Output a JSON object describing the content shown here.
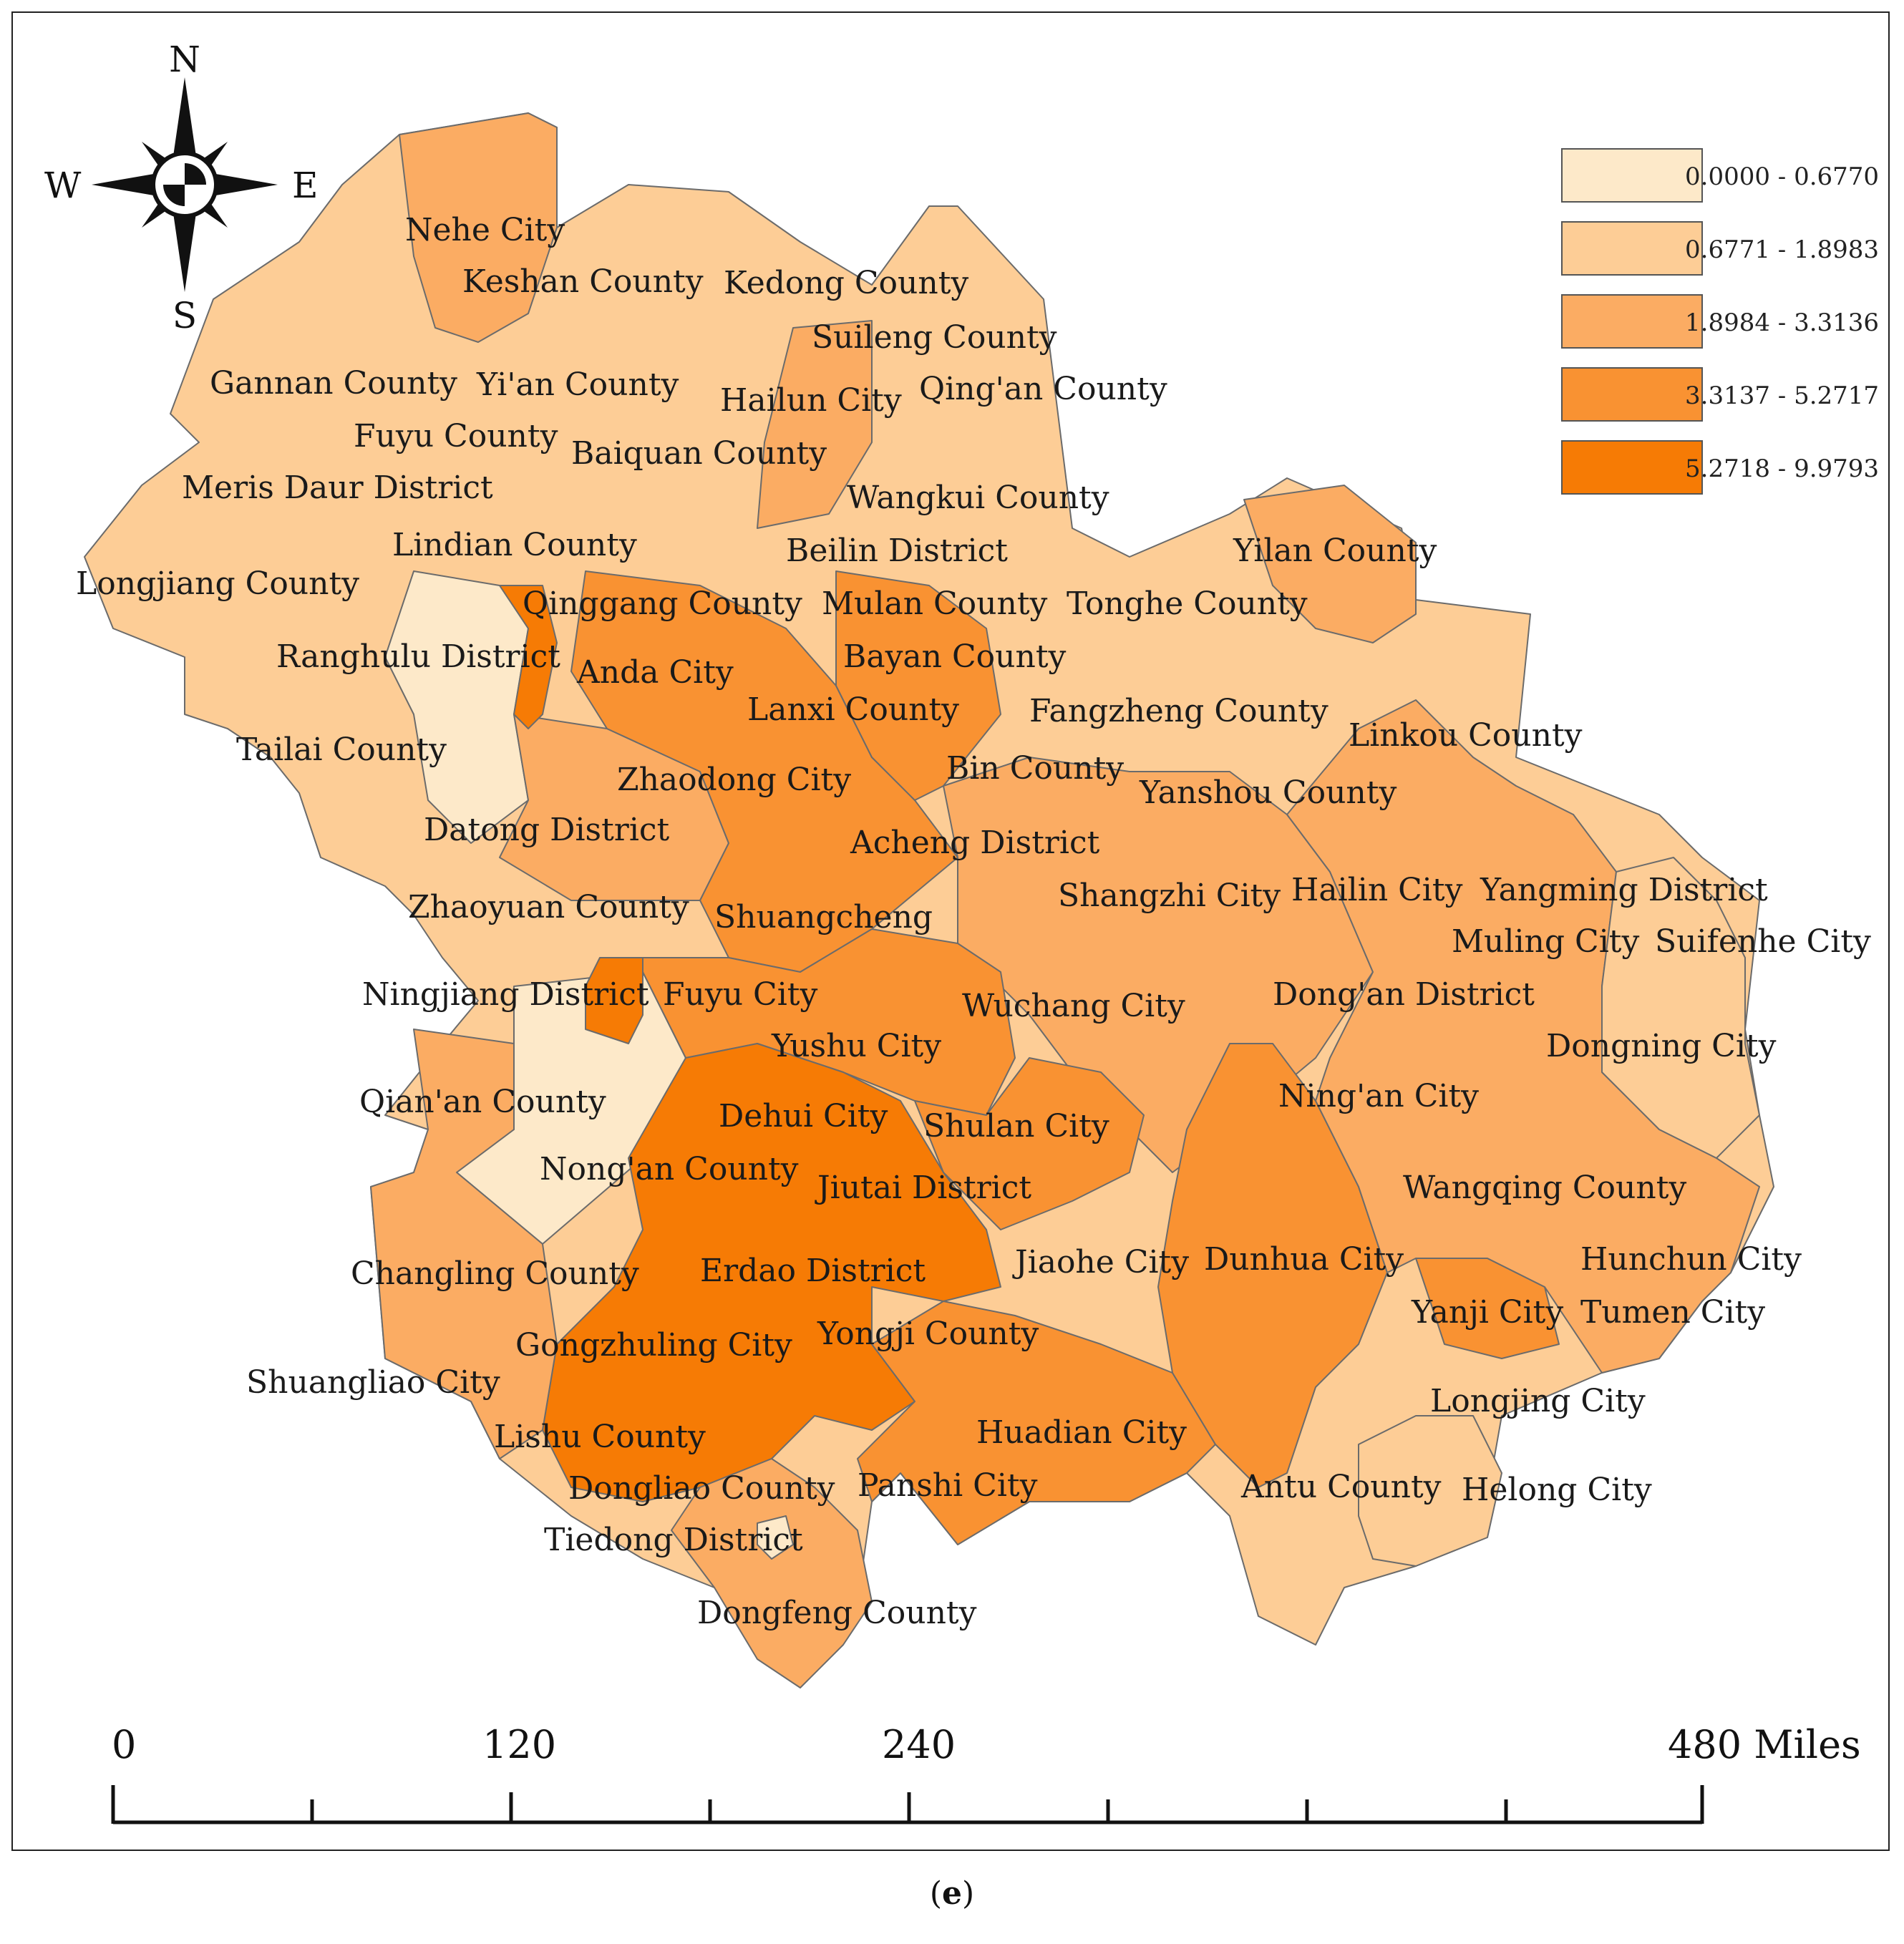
{
  "compass": {
    "north": "N",
    "south": "S",
    "east": "E",
    "west": "W"
  },
  "legend": {
    "classes": [
      {
        "label": "0.0000 - 0.6770",
        "color": "#fde9c9"
      },
      {
        "label": "0.6771 - 1.8983",
        "color": "#fdcd96"
      },
      {
        "label": "1.8984 - 3.3136",
        "color": "#fbac63"
      },
      {
        "label": "3.3137 - 5.2717",
        "color": "#f99232"
      },
      {
        "label": "5.2718 - 9.9793",
        "color": "#f67b05"
      }
    ]
  },
  "scale_bar": {
    "ticks": [
      "0",
      "120",
      "240",
      "480 Miles"
    ]
  },
  "caption": {
    "open": "(",
    "letter": "e",
    "close": ")"
  },
  "places": [
    {
      "name": "Nehe City",
      "class": 2
    },
    {
      "name": "Keshan County",
      "class": 1
    },
    {
      "name": "Kedong County",
      "class": 1
    },
    {
      "name": "Suileng County",
      "class": 1
    },
    {
      "name": "Gannan County",
      "class": 1
    },
    {
      "name": "Yi'an County",
      "class": 1
    },
    {
      "name": "Hailun City",
      "class": 2
    },
    {
      "name": "Qing'an County",
      "class": 1
    },
    {
      "name": "Fuyu County",
      "class": 1
    },
    {
      "name": "Baiquan County",
      "class": 1
    },
    {
      "name": "Meris Daur District",
      "class": 1
    },
    {
      "name": "Wangkui County",
      "class": 1
    },
    {
      "name": "Lindian County",
      "class": 1
    },
    {
      "name": "Beilin District",
      "class": 1
    },
    {
      "name": "Yilan County",
      "class": 2
    },
    {
      "name": "Longjiang County",
      "class": 1
    },
    {
      "name": "Qinggang County",
      "class": 3
    },
    {
      "name": "Mulan County",
      "class": 1
    },
    {
      "name": "Tonghe County",
      "class": 1
    },
    {
      "name": "Ranghulu District",
      "class": 0
    },
    {
      "name": "Anda City",
      "class": 3
    },
    {
      "name": "Bayan County",
      "class": 3
    },
    {
      "name": "Lanxi County",
      "class": 1
    },
    {
      "name": "Fangzheng County",
      "class": 1
    },
    {
      "name": "Linkou County",
      "class": 1
    },
    {
      "name": "Tailai County",
      "class": 1
    },
    {
      "name": "Zhaodong City",
      "class": 3
    },
    {
      "name": "Bin County",
      "class": 2
    },
    {
      "name": "Yanshou County",
      "class": 1
    },
    {
      "name": "Datong District",
      "class": 2
    },
    {
      "name": "Acheng District",
      "class": 3
    },
    {
      "name": "Shangzhi City",
      "class": 2
    },
    {
      "name": "Hailin City",
      "class": 2
    },
    {
      "name": "Yangming District",
      "class": 2
    },
    {
      "name": "Zhaoyuan County",
      "class": 1
    },
    {
      "name": "Shuangcheng",
      "class": 3
    },
    {
      "name": "Muling City",
      "class": 2
    },
    {
      "name": "Suifenhe City",
      "class": 1
    },
    {
      "name": "Ningjiang District",
      "class": 4
    },
    {
      "name": "Fuyu City",
      "class": 3
    },
    {
      "name": "Wuchang City",
      "class": 2
    },
    {
      "name": "Dong'an District",
      "class": 0
    },
    {
      "name": "Yushu City",
      "class": 3
    },
    {
      "name": "Dongning City",
      "class": 1
    },
    {
      "name": "Qian'an County",
      "class": 2
    },
    {
      "name": "Dehui City",
      "class": 4
    },
    {
      "name": "Shulan City",
      "class": 3
    },
    {
      "name": "Ning'an City",
      "class": 2
    },
    {
      "name": "Nong'an County",
      "class": 4
    },
    {
      "name": "Jiutai District",
      "class": 4
    },
    {
      "name": "Wangqing County",
      "class": 2
    },
    {
      "name": "Changling County",
      "class": 2
    },
    {
      "name": "Erdao District",
      "class": 4
    },
    {
      "name": "Jiaohe City",
      "class": 2
    },
    {
      "name": "Dunhua City",
      "class": 3
    },
    {
      "name": "Hunchun City",
      "class": 2
    },
    {
      "name": "Yanji City",
      "class": 3
    },
    {
      "name": "Tumen City",
      "class": 2
    },
    {
      "name": "Gongzhuling City",
      "class": 4
    },
    {
      "name": "Yongji County",
      "class": 3
    },
    {
      "name": "Shuangliao City",
      "class": 2
    },
    {
      "name": "Longjing City",
      "class": 2
    },
    {
      "name": "Lishu County",
      "class": 4
    },
    {
      "name": "Huadian City",
      "class": 3
    },
    {
      "name": "Dongliao County",
      "class": 2
    },
    {
      "name": "Panshi City",
      "class": 3
    },
    {
      "name": "Antu County",
      "class": 2
    },
    {
      "name": "Helong City",
      "class": 1
    },
    {
      "name": "Tiedong District",
      "class": 2
    },
    {
      "name": "Dongfeng County",
      "class": 2
    }
  ]
}
